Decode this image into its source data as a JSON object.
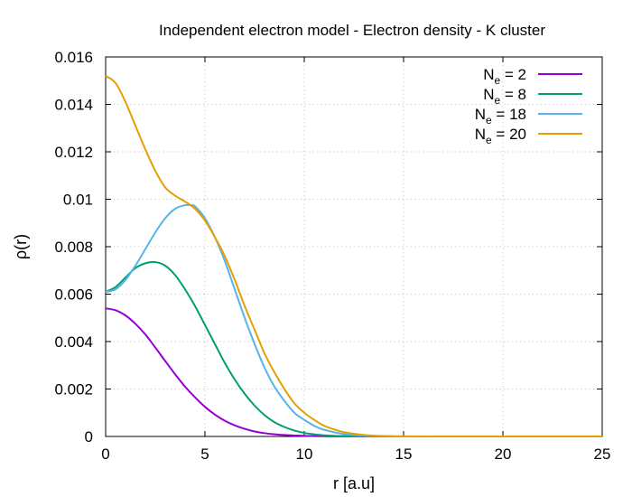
{
  "chart_data": {
    "type": "line",
    "title": "Independent electron model - Electron density - K cluster",
    "xlabel": "r [a.u]",
    "ylabel": "ρ(r)",
    "xlim": [
      0,
      25
    ],
    "ylim": [
      0,
      0.016
    ],
    "xticks": [
      "0",
      "5",
      "10",
      "15",
      "20",
      "25"
    ],
    "yticks": [
      "0",
      "0.002",
      "0.004",
      "0.006",
      "0.008",
      "0.01",
      "0.012",
      "0.014",
      "0.016"
    ],
    "grid": true,
    "legend": "top-right",
    "series": [
      {
        "name_base": "N",
        "name_sub": "e",
        "name_rest": " = 2",
        "color": "#9400d3",
        "x": [
          0,
          0.5,
          1,
          1.5,
          2,
          2.5,
          3,
          3.5,
          4,
          4.5,
          5,
          5.5,
          6,
          6.5,
          7,
          7.5,
          8,
          8.5,
          9,
          9.5,
          10,
          11,
          12,
          13,
          14,
          15,
          17,
          20,
          25
        ],
        "y": [
          0.0054,
          0.00532,
          0.0051,
          0.00475,
          0.0043,
          0.00375,
          0.00318,
          0.00262,
          0.0021,
          0.00165,
          0.00125,
          0.00092,
          0.00066,
          0.00047,
          0.00032,
          0.00021,
          0.00014,
          9e-05,
          6e-05,
          4e-05,
          2.5e-05,
          1e-05,
          4e-06,
          1.5e-06,
          0,
          0,
          0,
          0,
          0
        ]
      },
      {
        "name_base": "N",
        "name_sub": "e",
        "name_rest": " = 8",
        "color": "#009e73",
        "x": [
          0,
          0.5,
          1,
          1.5,
          2,
          2.5,
          3,
          3.5,
          4,
          4.5,
          5,
          5.5,
          6,
          6.5,
          7,
          7.5,
          8,
          8.5,
          9,
          9.5,
          10,
          10.5,
          11,
          12,
          13,
          14,
          15,
          17,
          20,
          25
        ],
        "y": [
          0.0061,
          0.0063,
          0.0067,
          0.0071,
          0.0073,
          0.00735,
          0.0072,
          0.0068,
          0.0062,
          0.0055,
          0.0047,
          0.0039,
          0.0031,
          0.0024,
          0.0018,
          0.0013,
          0.0009,
          0.0006,
          0.0004,
          0.00025,
          0.00015,
          9e-05,
          5e-05,
          1.5e-05,
          4e-06,
          0,
          0,
          0,
          0,
          0
        ]
      },
      {
        "name_base": "N",
        "name_sub": "e",
        "name_rest": " = 18",
        "color": "#56b4e9",
        "x": [
          0,
          0.5,
          1,
          1.5,
          2,
          2.5,
          3,
          3.5,
          4,
          4.3,
          4.5,
          5,
          5.5,
          6,
          6.5,
          7,
          7.5,
          8,
          8.5,
          9,
          9.5,
          10,
          10.5,
          11,
          12,
          13,
          14,
          15,
          17,
          20,
          25
        ],
        "y": [
          0.0061,
          0.0062,
          0.0066,
          0.0072,
          0.0079,
          0.0086,
          0.0092,
          0.0096,
          0.00975,
          0.00975,
          0.0097,
          0.0092,
          0.0084,
          0.0074,
          0.0062,
          0.005,
          0.0039,
          0.0029,
          0.0021,
          0.0015,
          0.001,
          0.0007,
          0.00045,
          0.00028,
          0.0001,
          3e-05,
          1e-05,
          0,
          0,
          0,
          0
        ]
      },
      {
        "name_base": "N",
        "name_sub": "e",
        "name_rest": " = 20",
        "color": "#e69f00",
        "x": [
          0,
          0.5,
          1,
          1.5,
          2,
          2.5,
          3,
          3.5,
          4,
          4.5,
          5,
          5.5,
          6,
          6.5,
          7,
          7.5,
          8,
          8.5,
          9,
          9.5,
          10,
          10.5,
          11,
          11.5,
          12,
          13,
          14,
          15,
          17,
          20,
          25
        ],
        "y": [
          0.0152,
          0.0149,
          0.0141,
          0.0131,
          0.0121,
          0.0112,
          0.0105,
          0.01015,
          0.0099,
          0.0096,
          0.0091,
          0.0084,
          0.0076,
          0.0066,
          0.0055,
          0.0045,
          0.0035,
          0.0027,
          0.002,
          0.0014,
          0.001,
          0.0007,
          0.00045,
          0.0003,
          0.00018,
          6e-05,
          2e-05,
          5e-06,
          0,
          0,
          0
        ]
      }
    ]
  }
}
